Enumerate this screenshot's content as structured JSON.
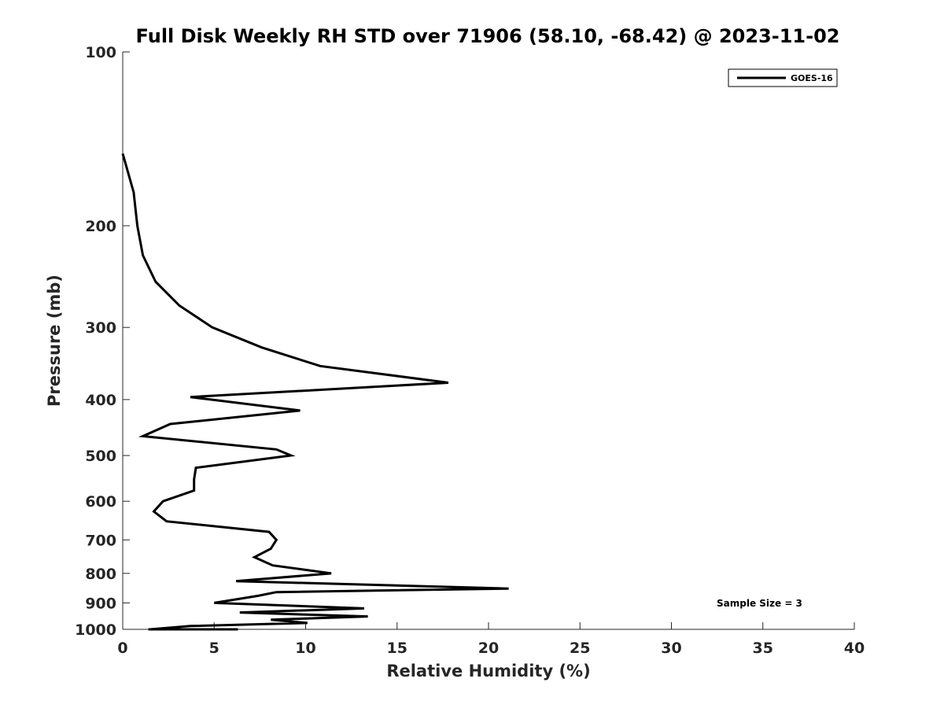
{
  "chart_data": {
    "type": "line",
    "title": "Full Disk Weekly RH STD over 71906 (58.10, -68.42) @ 2023-11-02",
    "xlabel": "Relative Humidity (%)",
    "ylabel": "Pressure (mb)",
    "xlim": [
      0,
      40
    ],
    "ylim": [
      1000,
      100
    ],
    "y_scale": "log",
    "x_ticks": [
      0,
      5,
      10,
      15,
      20,
      25,
      30,
      35,
      40
    ],
    "x_tick_labels": [
      "0",
      "5",
      "10",
      "15",
      "20",
      "25",
      "30",
      "35",
      "40"
    ],
    "y_ticks": [
      100,
      200,
      300,
      400,
      500,
      600,
      700,
      800,
      900,
      1000
    ],
    "y_tick_labels": [
      "100",
      "200",
      "300",
      "400",
      "500",
      "600",
      "700",
      "800",
      "900",
      "1000"
    ],
    "grid": false,
    "legend": {
      "position": "top-right",
      "entries": [
        "GOES-16"
      ]
    },
    "annotation": "Sample Size = 3",
    "line_color": "#000000",
    "series": [
      {
        "name": "GOES-16",
        "x": [
          0.0,
          0.6,
          0.8,
          1.1,
          1.8,
          3.1,
          4.9,
          7.6,
          10.8,
          17.8,
          3.7,
          9.7,
          2.6,
          1.1,
          8.4,
          9.2,
          4.0,
          3.9,
          3.9,
          2.2,
          1.7,
          2.4,
          8.0,
          8.4,
          8.1,
          7.2,
          8.2,
          11.4,
          6.2,
          21.1,
          8.4,
          7.4,
          5.0,
          13.2,
          6.4,
          13.4,
          8.1,
          10.1,
          3.7,
          1.5,
          6.3,
          1.4
        ],
        "y": [
          150,
          175,
          200,
          225,
          250,
          275,
          300,
          325,
          350,
          374,
          396,
          418,
          441,
          463,
          488,
          500,
          525,
          550,
          575,
          600,
          625,
          650,
          678,
          700,
          725,
          750,
          775,
          800,
          825,
          850,
          862,
          875,
          900,
          920,
          935,
          950,
          962,
          975,
          987,
          1000,
          1000,
          1000
        ]
      }
    ]
  }
}
